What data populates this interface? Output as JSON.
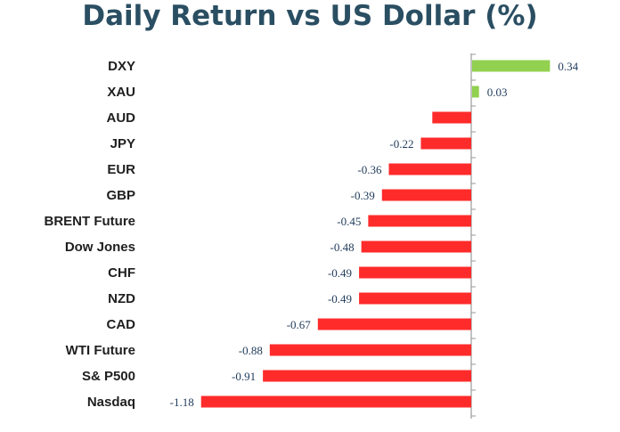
{
  "chart_data": {
    "type": "bar",
    "orientation": "horizontal",
    "title": "Daily Return vs US Dollar (%)",
    "categories": [
      "DXY",
      "XAU",
      "AUD",
      "JPY",
      "EUR",
      "GBP",
      "BRENT Future",
      "Dow Jones",
      "CHF",
      "NZD",
      "CAD",
      "WTI Future",
      "S& P500",
      "Nasdaq"
    ],
    "values": [
      0.34,
      0.03,
      -0.17,
      -0.22,
      -0.36,
      -0.39,
      -0.45,
      -0.48,
      -0.49,
      -0.49,
      -0.67,
      -0.88,
      -0.91,
      -1.18
    ],
    "value_labels": [
      "0.34",
      "0.03",
      "",
      "-0.22",
      "-0.36",
      "-0.39",
      "-0.45",
      "-0.48",
      "-0.49",
      "-0.49",
      "-0.67",
      "-0.88",
      "-0.91",
      "-1.18"
    ],
    "xlim": [
      -1.18,
      0.34
    ],
    "grid": false,
    "legend": "none",
    "positive_color": "#92d050",
    "negative_color": "#ff2b2b"
  }
}
